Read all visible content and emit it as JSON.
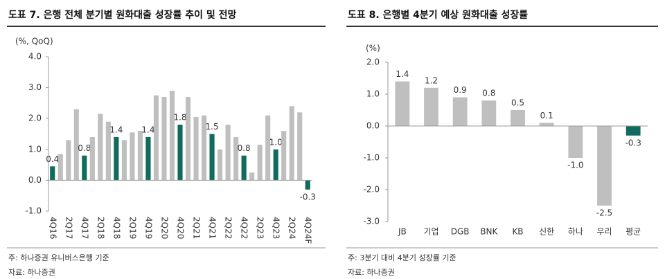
{
  "chart_data": [
    {
      "type": "bar",
      "title": "도표 7. 은행 전체 분기별 원화대출 성장률 추이 및 전망",
      "y_label": "(%, QoQ)",
      "categories": [
        "4Q16",
        null,
        "2Q17",
        null,
        "4Q17",
        null,
        "2Q18",
        null,
        "4Q18",
        null,
        "2Q19",
        null,
        "4Q19",
        null,
        "2Q20",
        null,
        "4Q20",
        null,
        "2Q21",
        null,
        "4Q21",
        null,
        "2Q22",
        null,
        "4Q22",
        null,
        "2Q23",
        null,
        "4Q23",
        null,
        "2Q24",
        null,
        "4Q24F"
      ],
      "values": [
        0.45,
        0.85,
        1.3,
        2.3,
        0.8,
        1.4,
        2.15,
        1.9,
        1.4,
        1.3,
        1.55,
        1.6,
        1.4,
        2.75,
        2.7,
        2.9,
        1.8,
        2.7,
        2.05,
        2.1,
        1.5,
        1.0,
        1.8,
        1.4,
        0.8,
        0.25,
        1.15,
        2.1,
        1.0,
        1.6,
        2.4,
        2.2,
        -0.3
      ],
      "value_labels": [
        "0.4",
        null,
        null,
        null,
        "0.8",
        null,
        null,
        null,
        "1.4",
        null,
        null,
        null,
        "1.4",
        null,
        null,
        null,
        "1.8",
        null,
        null,
        null,
        "1.5",
        null,
        null,
        null,
        "0.8",
        null,
        null,
        null,
        "1.0",
        null,
        null,
        null,
        "-0.3"
      ],
      "colors": [
        "#0f6b5e",
        "#bfbfbf",
        "#bfbfbf",
        "#bfbfbf",
        "#0f6b5e",
        "#bfbfbf",
        "#bfbfbf",
        "#bfbfbf",
        "#0f6b5e",
        "#bfbfbf",
        "#bfbfbf",
        "#bfbfbf",
        "#0f6b5e",
        "#bfbfbf",
        "#bfbfbf",
        "#bfbfbf",
        "#0f6b5e",
        "#bfbfbf",
        "#bfbfbf",
        "#bfbfbf",
        "#0f6b5e",
        "#bfbfbf",
        "#bfbfbf",
        "#bfbfbf",
        "#0f6b5e",
        "#bfbfbf",
        "#bfbfbf",
        "#bfbfbf",
        "#0f6b5e",
        "#bfbfbf",
        "#bfbfbf",
        "#bfbfbf",
        "#0f6b5e"
      ],
      "ylim": [
        -1,
        4
      ],
      "yticks": [
        {
          "value": 4,
          "label": "4.0"
        },
        {
          "value": 3,
          "label": "3.0"
        },
        {
          "value": 2,
          "label": "2.0"
        },
        {
          "value": 1,
          "label": "1.0"
        },
        {
          "value": 0,
          "label": "0.0"
        },
        {
          "value": -1,
          "label": "-1.0"
        }
      ],
      "notes": [
        "주: 하나증권 유니버스은행 기준",
        "자료: 하나증권"
      ]
    },
    {
      "type": "bar",
      "title": "도표 8. 은행별 4분기 예상 원화대출 성장률",
      "y_label": "(%)",
      "categories": [
        "JB",
        "기업",
        "DGB",
        "BNK",
        "KB",
        "신한",
        "하나",
        "우리",
        "평균"
      ],
      "values": [
        1.4,
        1.2,
        0.9,
        0.8,
        0.5,
        0.1,
        -1.0,
        -2.5,
        -0.3
      ],
      "value_labels": [
        "1.4",
        "1.2",
        "0.9",
        "0.8",
        "0.5",
        "0.1",
        "-1.0",
        "-2.5",
        "-0.3"
      ],
      "colors": [
        "#bfbfbf",
        "#bfbfbf",
        "#bfbfbf",
        "#bfbfbf",
        "#bfbfbf",
        "#bfbfbf",
        "#bfbfbf",
        "#bfbfbf",
        "#0f6b5e"
      ],
      "ylim": [
        -3,
        2
      ],
      "yticks": [
        {
          "value": 2,
          "label": "2.0"
        },
        {
          "value": 1,
          "label": "1.0"
        },
        {
          "value": 0,
          "label": "0.0"
        },
        {
          "value": -1,
          "label": "-1.0"
        },
        {
          "value": -2,
          "label": "-2.0"
        },
        {
          "value": -3,
          "label": "-3.0"
        }
      ],
      "notes": [
        "주: 3분기 대비 4분기 성장률 기준",
        "자료: 하나증권"
      ]
    }
  ]
}
